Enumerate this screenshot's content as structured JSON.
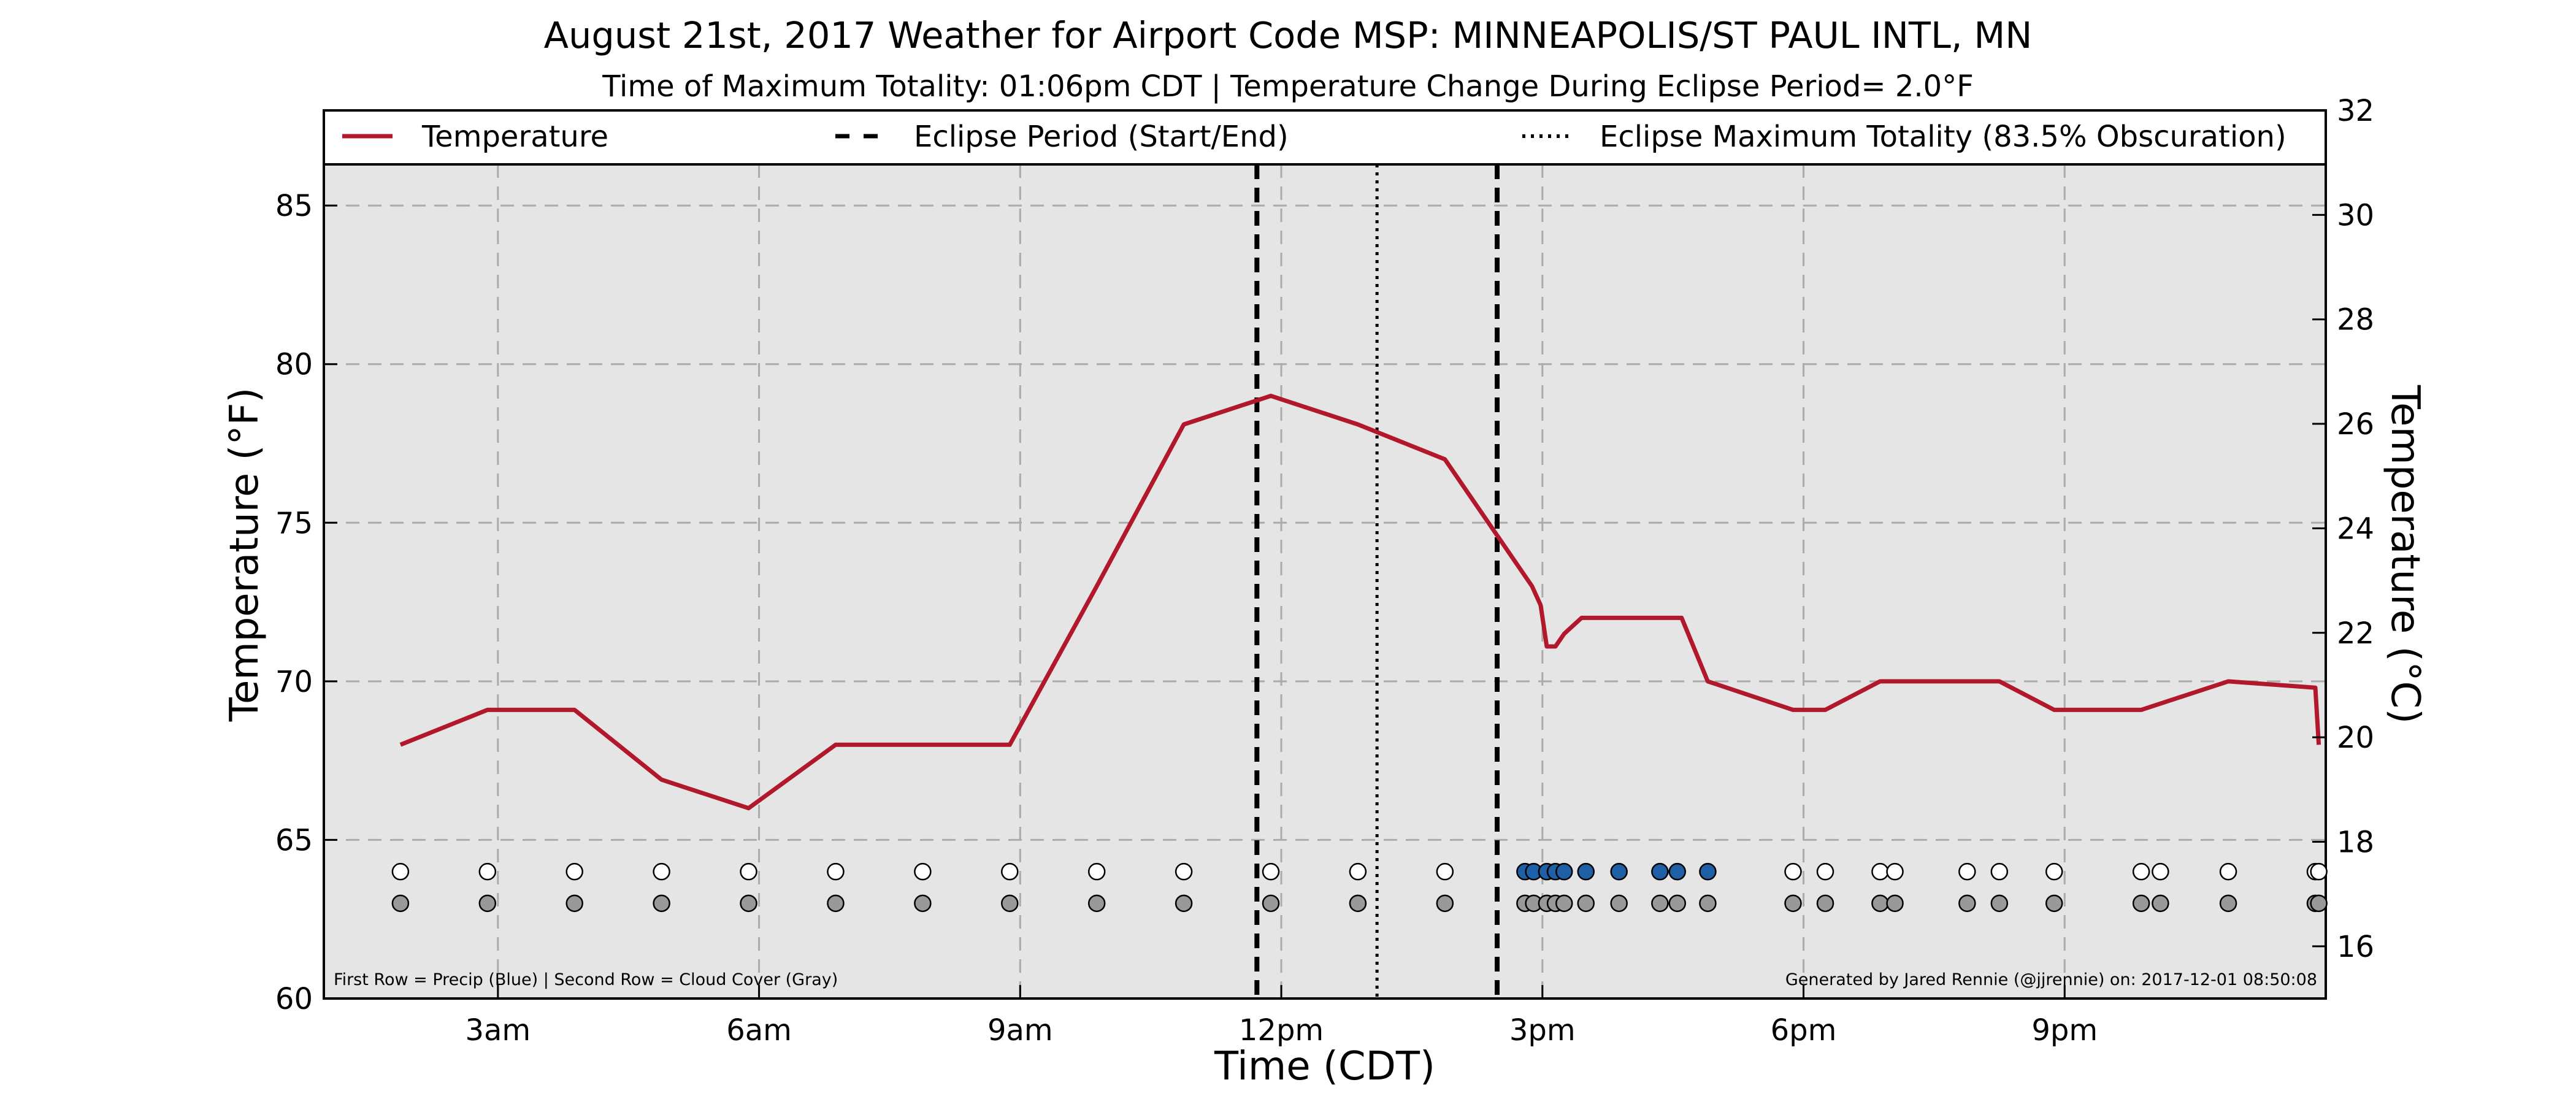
{
  "chart_data": {
    "type": "line",
    "title": "August 21st, 2017 Weather for Airport Code MSP: MINNEAPOLIS/ST PAUL INTL, MN",
    "subtitle": "Time of Maximum Totality: 01:06pm CDT | Temperature Change During Eclipse Period= 2.0°F",
    "xlabel": "Time (CDT)",
    "ylabel": "Temperature (°F)",
    "ylabel_right": "Temperature (°C)",
    "xlim": [
      1.0,
      24.0
    ],
    "ylim": [
      60,
      88
    ],
    "ylim_right": [
      15.0,
      32.0
    ],
    "grid": true,
    "legend_placement": "top",
    "x_ticks": [
      {
        "value": 3,
        "label": "3am"
      },
      {
        "value": 6,
        "label": "6am"
      },
      {
        "value": 9,
        "label": "9am"
      },
      {
        "value": 12,
        "label": "12pm"
      },
      {
        "value": 15,
        "label": "3pm"
      },
      {
        "value": 18,
        "label": "6pm"
      },
      {
        "value": 21,
        "label": "9pm"
      }
    ],
    "y_ticks": [
      {
        "value": 60,
        "label": "60"
      },
      {
        "value": 65,
        "label": "65"
      },
      {
        "value": 70,
        "label": "70"
      },
      {
        "value": 75,
        "label": "75"
      },
      {
        "value": 80,
        "label": "80"
      },
      {
        "value": 85,
        "label": "85"
      }
    ],
    "y_ticks_right": [
      {
        "value": 16,
        "label": "16"
      },
      {
        "value": 18,
        "label": "18"
      },
      {
        "value": 20,
        "label": "20"
      },
      {
        "value": 22,
        "label": "22"
      },
      {
        "value": 24,
        "label": "24"
      },
      {
        "value": 26,
        "label": "26"
      },
      {
        "value": 28,
        "label": "28"
      },
      {
        "value": 30,
        "label": "30"
      },
      {
        "value": 32,
        "label": "32"
      }
    ],
    "legend": [
      {
        "label": "Temperature",
        "style": "solid"
      },
      {
        "label": "Eclipse Period (Start/End)",
        "style": "dashed"
      },
      {
        "label": "Eclipse Maximum Totality (83.5% Obscuration)",
        "style": "dotted"
      }
    ],
    "series": [
      {
        "name": "Temperature",
        "x": [
          1.88,
          2.88,
          3.88,
          4.88,
          5.88,
          6.88,
          7.88,
          8.88,
          9.88,
          10.88,
          11.88,
          12.88,
          13.88,
          14.88,
          14.98,
          15.05,
          15.15,
          15.25,
          15.45,
          15.88,
          16.35,
          16.6,
          16.9,
          17.88,
          18.25,
          18.88,
          19.88,
          20.25,
          20.88,
          21.88,
          22.88,
          23.88,
          23.92
        ],
        "values": [
          68,
          69.1,
          69.1,
          66.9,
          66,
          68,
          68,
          68,
          73,
          78.1,
          79,
          78.1,
          77,
          73,
          72.4,
          71.1,
          71.1,
          71.5,
          72,
          72,
          72,
          72,
          70,
          69.1,
          69.1,
          70,
          70,
          70,
          69.1,
          69.1,
          70,
          69.8,
          68
        ],
        "color": "#b2182b"
      }
    ],
    "eclipse_start": 11.72,
    "eclipse_end": 14.48,
    "eclipse_max": 13.1,
    "precip_row": {
      "value": 64,
      "x": [
        1.88,
        2.88,
        3.88,
        4.88,
        5.88,
        6.88,
        7.88,
        8.88,
        9.88,
        10.88,
        11.88,
        12.88,
        13.88,
        14.8,
        14.9,
        15.05,
        15.15,
        15.25,
        15.5,
        15.88,
        16.35,
        16.55,
        16.9,
        17.88,
        18.25,
        18.88,
        19.05,
        19.88,
        20.25,
        20.88,
        21.88,
        22.1,
        22.88,
        23.88,
        23.92
      ],
      "precip": [
        false,
        false,
        false,
        false,
        false,
        false,
        false,
        false,
        false,
        false,
        false,
        false,
        false,
        true,
        true,
        true,
        true,
        true,
        true,
        true,
        true,
        true,
        true,
        false,
        false,
        false,
        false,
        false,
        false,
        false,
        false,
        false,
        false,
        false,
        false
      ],
      "colors": {
        "precip": "#1f5fa6",
        "none": "#ffffff"
      }
    },
    "cloud_row": {
      "value": 63,
      "x": [
        1.88,
        2.88,
        3.88,
        4.88,
        5.88,
        6.88,
        7.88,
        8.88,
        9.88,
        10.88,
        11.88,
        12.88,
        13.88,
        14.8,
        14.9,
        15.05,
        15.15,
        15.25,
        15.5,
        15.88,
        16.35,
        16.55,
        16.9,
        17.88,
        18.25,
        18.88,
        19.05,
        19.88,
        20.25,
        20.88,
        21.88,
        22.1,
        22.88,
        23.88,
        23.92
      ],
      "color": "#999999"
    },
    "footnote_left": "First Row = Precip (Blue) | Second Row = Cloud Cover (Gray)",
    "footnote_right": "Generated by Jared Rennie (@jjrennie) on: 2017-12-01 08:50:08"
  }
}
